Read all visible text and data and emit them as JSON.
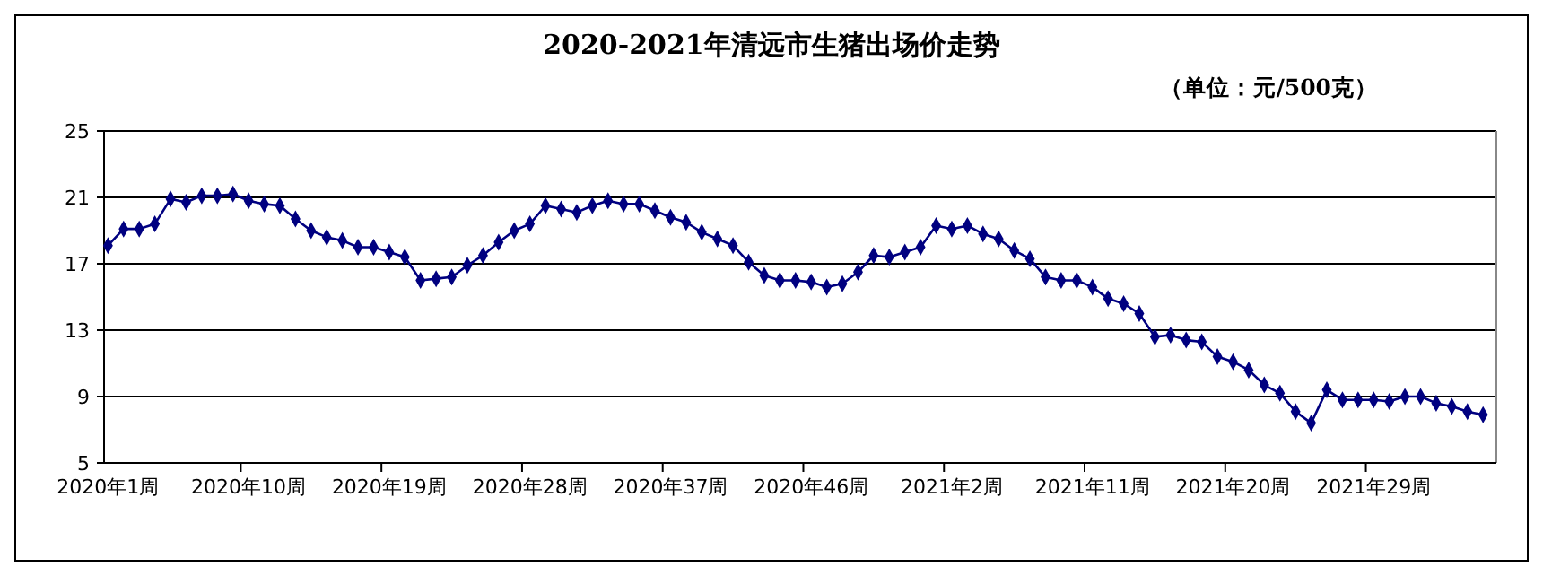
{
  "chart_data": {
    "type": "line",
    "title": "2020-2021年清远市生猪出场价走势",
    "subtitle": "（单位：元/500克）",
    "categories": [
      "2020年1周",
      null,
      null,
      null,
      null,
      null,
      null,
      null,
      null,
      "2020年10周",
      null,
      null,
      null,
      null,
      null,
      null,
      null,
      null,
      "2020年19周",
      null,
      null,
      null,
      null,
      null,
      null,
      null,
      null,
      "2020年28周",
      null,
      null,
      null,
      null,
      null,
      null,
      null,
      null,
      "2020年37周",
      null,
      null,
      null,
      null,
      null,
      null,
      null,
      null,
      "2020年46周",
      null,
      null,
      null,
      null,
      null,
      null,
      null,
      null,
      "2021年2周",
      null,
      null,
      null,
      null,
      null,
      null,
      null,
      null,
      "2021年11周",
      null,
      null,
      null,
      null,
      null,
      null,
      null,
      null,
      "2021年20周",
      null,
      null,
      null,
      null,
      null,
      null,
      null,
      null,
      "2021年29周",
      null,
      null,
      null,
      null,
      null,
      null,
      null
    ],
    "series": [
      {
        "color": "#000080",
        "values": [
          18.1,
          19.1,
          19.1,
          19.4,
          20.9,
          20.7,
          21.1,
          21.1,
          21.2,
          20.8,
          20.6,
          20.5,
          19.7,
          19.0,
          18.6,
          18.4,
          18.0,
          18.0,
          17.7,
          17.4,
          16.0,
          16.1,
          16.2,
          16.9,
          17.5,
          18.3,
          19.0,
          19.4,
          20.5,
          20.3,
          20.1,
          20.5,
          20.8,
          20.6,
          20.6,
          20.2,
          19.8,
          19.5,
          18.9,
          18.5,
          18.1,
          17.1,
          16.3,
          16.0,
          16.0,
          15.9,
          15.6,
          15.8,
          16.5,
          17.5,
          17.4,
          17.7,
          18.0,
          19.3,
          19.1,
          19.3,
          18.8,
          18.5,
          17.8,
          17.3,
          16.2,
          16.0,
          16.0,
          15.6,
          14.9,
          14.6,
          14.0,
          12.6,
          12.7,
          12.4,
          12.3,
          11.4,
          11.1,
          10.6,
          9.7,
          9.2,
          8.1,
          7.4,
          9.4,
          8.8,
          8.8,
          8.8,
          8.7,
          9.0,
          9.0,
          8.6,
          8.4,
          8.1,
          7.9
        ]
      }
    ],
    "ylim": [
      5,
      25
    ],
    "yticks": [
      5,
      9,
      13,
      17,
      21,
      25
    ],
    "grid": "y",
    "marker": "diamond",
    "line_style": "solid"
  }
}
